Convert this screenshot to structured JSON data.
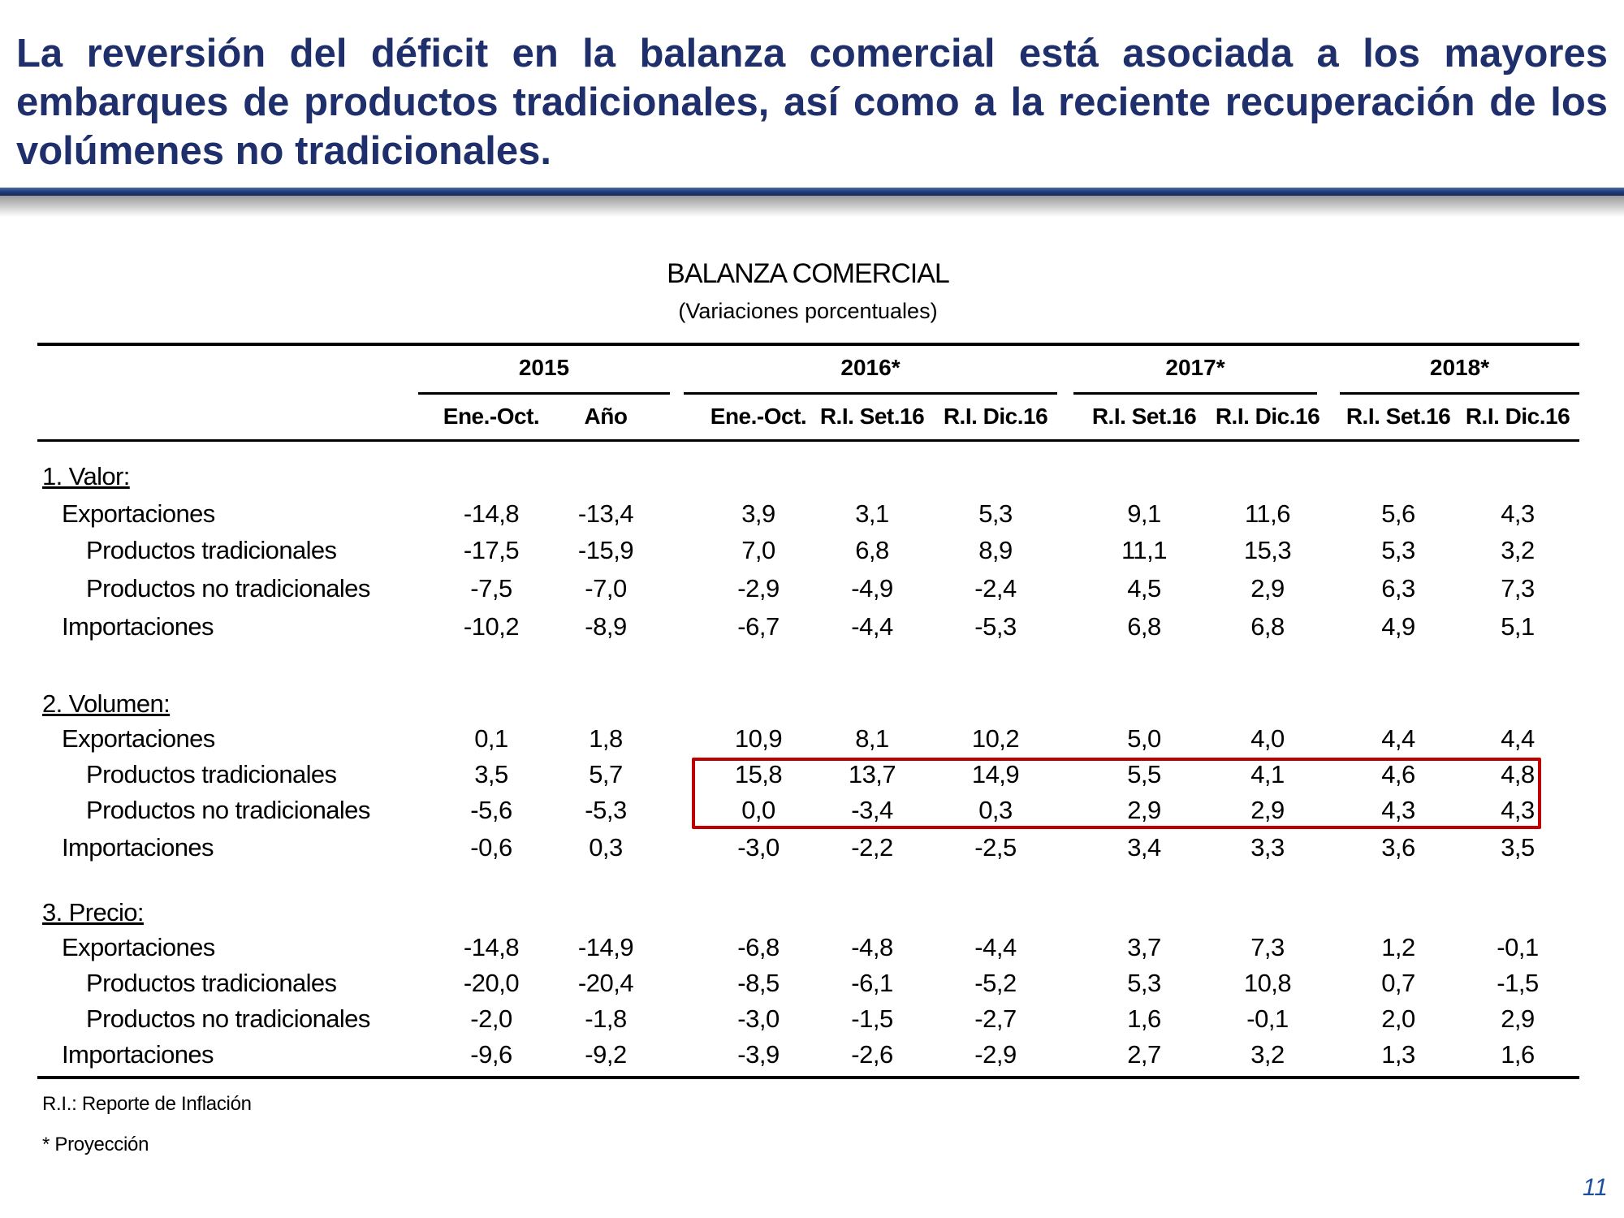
{
  "headline": "La reversión del déficit en la balanza comercial está asociada a los mayores embarques de productos tradicionales, así como a la reciente recuperación de los volúmenes no tradicionales.",
  "table": {
    "title": "BALANZA COMERCIAL",
    "subtitle": "(Variaciones porcentuales)",
    "year_groups": [
      "2015",
      "2016*",
      "2017*",
      "2018*"
    ],
    "columns": [
      "Ene.-Oct.",
      "Año",
      "Ene.-Oct.",
      "R.I. Set.16",
      "R.I. Dic.16",
      "R.I. Set.16",
      "R.I. Dic.16",
      "R.I. Set.16",
      "R.I. Dic.16"
    ],
    "sections": [
      {
        "label": "1. Valor:",
        "rows": [
          {
            "label": "Exportaciones",
            "level": 1,
            "values": [
              "-14,8",
              "-13,4",
              "3,9",
              "3,1",
              "5,3",
              "9,1",
              "11,6",
              "5,6",
              "4,3"
            ]
          },
          {
            "label": "Productos tradicionales",
            "level": 2,
            "values": [
              "-17,5",
              "-15,9",
              "7,0",
              "6,8",
              "8,9",
              "11,1",
              "15,3",
              "5,3",
              "3,2"
            ]
          },
          {
            "label": "Productos no tradicionales",
            "level": 2,
            "values": [
              "-7,5",
              "-7,0",
              "-2,9",
              "-4,9",
              "-2,4",
              "4,5",
              "2,9",
              "6,3",
              "7,3"
            ]
          },
          {
            "label": "Importaciones",
            "level": 1,
            "values": [
              "-10,2",
              "-8,9",
              "-6,7",
              "-4,4",
              "-5,3",
              "6,8",
              "6,8",
              "4,9",
              "5,1"
            ]
          }
        ]
      },
      {
        "label": "2. Volumen:",
        "rows": [
          {
            "label": "Exportaciones",
            "level": 1,
            "values": [
              "0,1",
              "1,8",
              "10,9",
              "8,1",
              "10,2",
              "5,0",
              "4,0",
              "4,4",
              "4,4"
            ]
          },
          {
            "label": "Productos tradicionales",
            "level": 2,
            "values": [
              "3,5",
              "5,7",
              "15,8",
              "13,7",
              "14,9",
              "5,5",
              "4,1",
              "4,6",
              "4,8"
            ]
          },
          {
            "label": "Productos no tradicionales",
            "level": 2,
            "values": [
              "-5,6",
              "-5,3",
              "0,0",
              "-3,4",
              "0,3",
              "2,9",
              "2,9",
              "4,3",
              "4,3"
            ]
          },
          {
            "label": "Importaciones",
            "level": 1,
            "values": [
              "-0,6",
              "0,3",
              "-3,0",
              "-2,2",
              "-2,5",
              "3,4",
              "3,3",
              "3,6",
              "3,5"
            ]
          }
        ]
      },
      {
        "label": "3. Precio:",
        "rows": [
          {
            "label": "Exportaciones",
            "level": 1,
            "values": [
              "-14,8",
              "-14,9",
              "-6,8",
              "-4,8",
              "-4,4",
              "3,7",
              "7,3",
              "1,2",
              "-0,1"
            ]
          },
          {
            "label": "Productos tradicionales",
            "level": 2,
            "values": [
              "-20,0",
              "-20,4",
              "-8,5",
              "-6,1",
              "-5,2",
              "5,3",
              "10,8",
              "0,7",
              "-1,5"
            ]
          },
          {
            "label": "Productos no tradicionales",
            "level": 2,
            "values": [
              "-2,0",
              "-1,8",
              "-3,0",
              "-1,5",
              "-2,7",
              "1,6",
              "-0,1",
              "2,0",
              "2,9"
            ]
          },
          {
            "label": "Importaciones",
            "level": 1,
            "values": [
              "-9,6",
              "-9,2",
              "-3,9",
              "-2,6",
              "-2,9",
              "2,7",
              "3,2",
              "1,3",
              "1,6"
            ]
          }
        ]
      }
    ]
  },
  "footnotes": [
    "R.I.: Reporte de Inflación",
    "* Proyección"
  ],
  "page_number": "11",
  "colors": {
    "headline": "#1f2f6b",
    "highlight_box": "#c00000",
    "page_number": "#1f4e9e"
  }
}
